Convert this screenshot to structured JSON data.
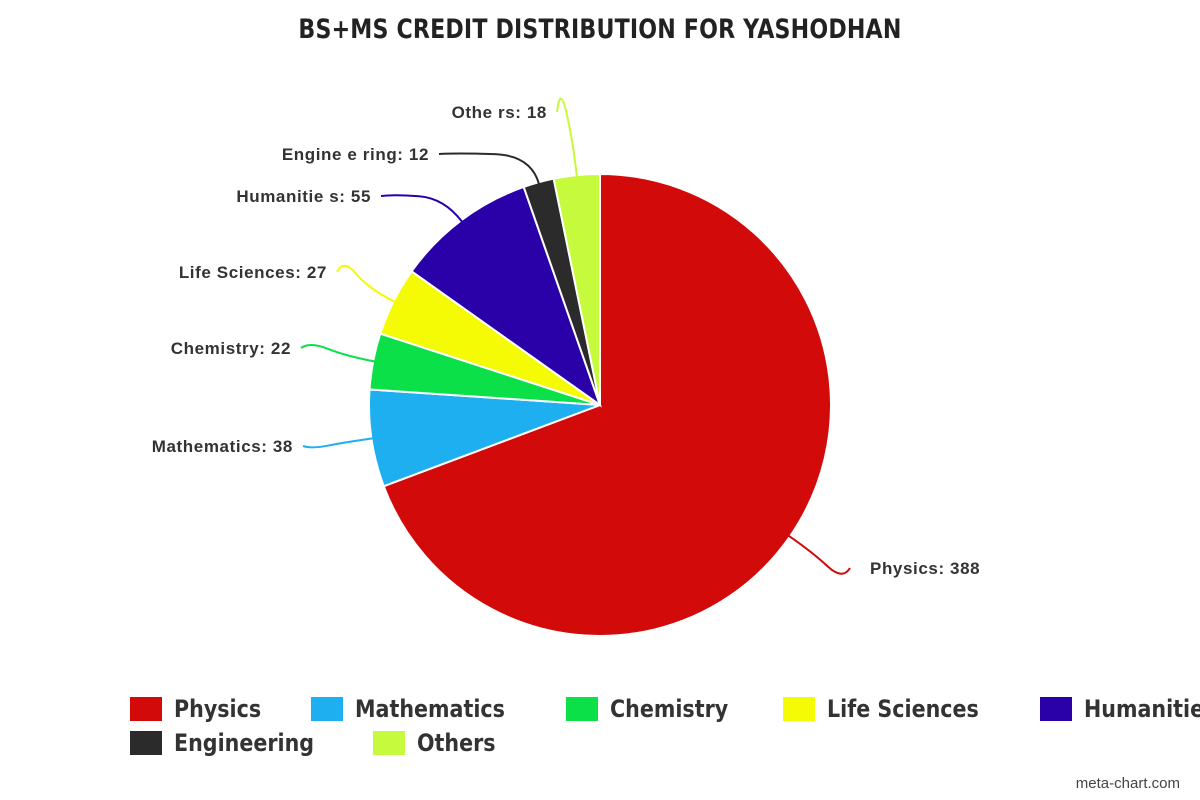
{
  "chart_data": {
    "type": "pie",
    "title": "BS+MS CREDIT DISTRIBUTION FOR YASHODHAN",
    "categories": [
      "Physics",
      "Mathematics",
      "Chemistry",
      "Life Sciences",
      "Humanities",
      "Engineering",
      "Others"
    ],
    "values": [
      388,
      38,
      22,
      27,
      55,
      12,
      18
    ],
    "colors": [
      "#d20a0a",
      "#1eaff0",
      "#0be049",
      "#f5fb04",
      "#2a00a8",
      "#2b2b2b",
      "#c6fa3c"
    ],
    "slice_labels": [
      "Physics: 388",
      "Mathematics: 38",
      "Chemistry: 22",
      "Life  Sciences: 27",
      "Humanitie s: 55",
      "Engine e ring: 12",
      "Othe rs: 18"
    ],
    "legend_placement": "bottom",
    "grid": false
  },
  "watermark": "meta-chart.com"
}
